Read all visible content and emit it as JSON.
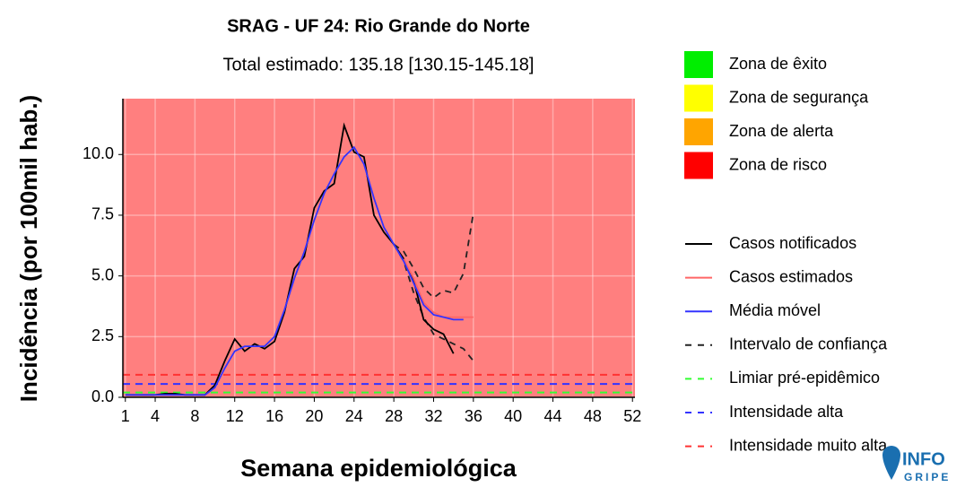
{
  "chart_data": {
    "type": "line",
    "title": "SRAG - UF 24: Rio Grande do Norte",
    "subtitle": "Total estimado: 135.18 [130.15-145.18]",
    "y_label": "Incidência (por 100mil hab.)",
    "x_label": "Semana epidemiológica",
    "x": [
      1,
      2,
      3,
      4,
      5,
      6,
      7,
      8,
      9,
      10,
      11,
      12,
      13,
      14,
      15,
      16,
      17,
      18,
      19,
      20,
      21,
      22,
      23,
      24,
      25,
      26,
      27,
      28,
      29,
      30,
      31,
      32,
      33,
      34,
      35,
      36
    ],
    "xlim": [
      0.75,
      52.25
    ],
    "xticks": [
      1,
      4,
      8,
      12,
      16,
      20,
      24,
      28,
      32,
      36,
      40,
      44,
      48,
      52
    ],
    "ylim": [
      0,
      12.3
    ],
    "yticks": [
      {
        "value": 0,
        "label": "0.0"
      },
      2.5,
      {
        "value": 5,
        "label": "5.0"
      },
      7.5,
      {
        "value": 10,
        "label": "10.0"
      }
    ],
    "grid": true,
    "zones": [
      {
        "name": "Zona de êxito",
        "color": "#00ee00"
      },
      {
        "name": "Zona de segurança",
        "color": "#ffff00"
      },
      {
        "name": "Zona de alerta",
        "color": "#ffa500"
      },
      {
        "name": "Zona de risco",
        "color": "#ff0000"
      }
    ],
    "series": [
      {
        "name": "Casos notificados",
        "color": "#000000",
        "dashed": false,
        "values": [
          0.1,
          0.1,
          0.1,
          0.1,
          0.15,
          0.15,
          0.1,
          0.1,
          0.1,
          0.5,
          1.5,
          2.4,
          1.9,
          2.2,
          2.0,
          2.3,
          3.5,
          5.3,
          5.8,
          7.8,
          8.5,
          8.8,
          11.2,
          10.1,
          9.9,
          7.5,
          6.8,
          6.3,
          5.7,
          4.8,
          3.2,
          2.8,
          2.6,
          1.8,
          null,
          null
        ]
      },
      {
        "name": "Casos estimados",
        "color": "#ff6666",
        "dashed": false,
        "values": [
          null,
          null,
          null,
          null,
          null,
          null,
          null,
          null,
          null,
          null,
          null,
          null,
          null,
          null,
          null,
          null,
          null,
          null,
          null,
          null,
          null,
          null,
          null,
          null,
          null,
          null,
          null,
          null,
          5.7,
          4.9,
          3.9,
          3.5,
          3.3,
          3.3,
          3.3,
          3.3
        ]
      },
      {
        "name": "Média móvel",
        "color": "#3333ff",
        "dashed": false,
        "values": [
          0.1,
          0.1,
          0.1,
          0.1,
          0.1,
          0.1,
          0.1,
          0.1,
          0.1,
          0.4,
          1.2,
          1.9,
          2.1,
          2.1,
          2.1,
          2.5,
          3.6,
          4.9,
          6.0,
          7.3,
          8.4,
          9.2,
          9.9,
          10.3,
          9.6,
          8.2,
          7.0,
          6.3,
          5.6,
          4.7,
          3.8,
          3.4,
          3.3,
          3.2,
          3.2,
          null
        ]
      },
      {
        "name": "Intervalo de confiança",
        "color": "#222222",
        "dashed": true,
        "values": [
          null,
          null,
          null,
          null,
          null,
          null,
          null,
          null,
          null,
          null,
          null,
          null,
          null,
          null,
          null,
          null,
          null,
          null,
          null,
          null,
          null,
          null,
          null,
          null,
          null,
          null,
          null,
          6.3,
          6.0,
          5.3,
          4.5,
          4.1,
          4.4,
          4.3,
          5.1,
          7.6
        ],
        "lower": [
          null,
          null,
          null,
          null,
          null,
          null,
          null,
          null,
          null,
          null,
          null,
          null,
          null,
          null,
          null,
          null,
          null,
          null,
          null,
          null,
          null,
          null,
          null,
          null,
          null,
          null,
          null,
          6.3,
          5.6,
          4.3,
          3.3,
          2.6,
          2.4,
          2.2,
          2.0,
          1.5
        ]
      },
      {
        "name": "Limiar pré-epidêmico",
        "color": "#33ff33",
        "dashed": true,
        "level": 0.2
      },
      {
        "name": "Intensidade alta",
        "color": "#3333ff",
        "dashed": true,
        "level": 0.55
      },
      {
        "name": "Intensidade muito alta",
        "color": "#ff3333",
        "dashed": true,
        "level": 0.93
      }
    ],
    "logo": [
      "INFO",
      "GRIPE"
    ]
  }
}
